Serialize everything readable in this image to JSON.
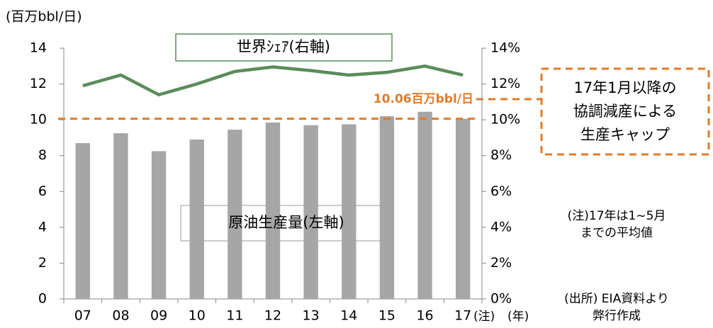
{
  "chart_data": {
    "type": "bar_line",
    "y_axis_label": "(百万bbl/日)",
    "categories": [
      "07",
      "08",
      "09",
      "10",
      "11",
      "12",
      "13",
      "14",
      "15",
      "16",
      "17"
    ],
    "x_suffix_annotations": [
      "(注)",
      "(年)"
    ],
    "series": [
      {
        "name": "原油生産量(左軸)",
        "type": "bar",
        "color": "#a6a6a6",
        "axis": "y",
        "values": [
          8.7,
          9.25,
          8.25,
          8.9,
          9.45,
          9.85,
          9.7,
          9.75,
          10.2,
          10.45,
          10.06
        ]
      },
      {
        "name": "世界ｼｪｱ(右軸)",
        "type": "line",
        "color": "#5b8c5a",
        "axis": "y2",
        "values": [
          11.9,
          12.5,
          11.4,
          12.0,
          12.7,
          12.95,
          12.75,
          12.5,
          12.65,
          13.0,
          12.5
        ]
      }
    ],
    "ylim": [
      0,
      14
    ],
    "yticks": [
      0,
      2,
      4,
      6,
      8,
      10,
      12,
      14
    ],
    "y2lim": [
      0,
      14
    ],
    "y2ticks": [
      {
        "value": 0,
        "label": "0%"
      },
      {
        "value": 2,
        "label": "2%"
      },
      {
        "value": 4,
        "label": "4%"
      },
      {
        "value": 6,
        "label": "6%"
      },
      {
        "value": 8,
        "label": "8%"
      },
      {
        "value": 10,
        "label": "10%"
      },
      {
        "value": 12,
        "label": "12%"
      },
      {
        "value": 14,
        "label": "14%"
      }
    ],
    "reference_line": {
      "value": 10.06,
      "label": "10.06百万bbl/日",
      "color": "#e07b28"
    },
    "callout": [
      "17年1月以降の",
      "協調減産による",
      "生産キャップ"
    ],
    "note": [
      "(注)17年は1~5月",
      "までの平均値"
    ],
    "source": [
      "(出所) EIA資料より",
      "弊行作成"
    ]
  }
}
